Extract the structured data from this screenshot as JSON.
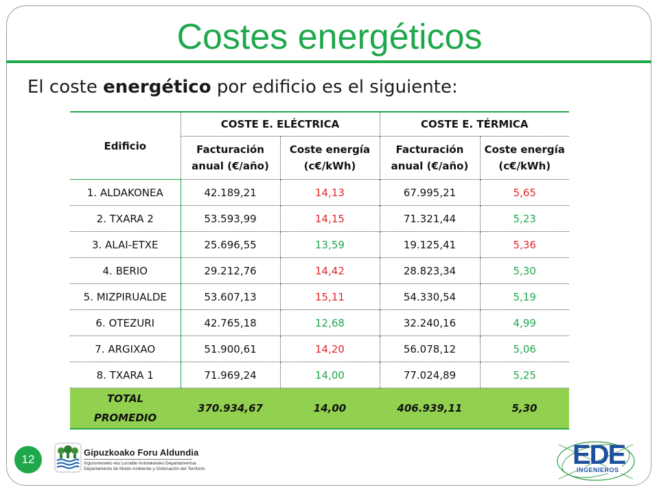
{
  "slide": {
    "title": "Costes energéticos",
    "subtitle_prefix": "El coste ",
    "subtitle_bold": "energético",
    "subtitle_suffix": " por edificio es el siguiente:",
    "page_number": "12"
  },
  "table": {
    "col_building": "Edificio",
    "group_electric": "COSTE E. ELÉCTRICA",
    "group_thermal": "COSTE E. TÉRMICA",
    "sub_billing_line1": "Facturación",
    "sub_billing_line2": "anual (€/año)",
    "sub_cost_line1": "Coste energía",
    "sub_cost_line2": "(c€/kWh)",
    "rows": [
      {
        "name": "1. ALDAKONEA",
        "elec_billing": "42.189,21",
        "elec_cost": "14,13",
        "elec_cost_color": "red",
        "therm_billing": "67.995,21",
        "therm_cost": "5,65",
        "therm_cost_color": "red"
      },
      {
        "name": "2. TXARA 2",
        "elec_billing": "53.593,99",
        "elec_cost": "14,15",
        "elec_cost_color": "red",
        "therm_billing": "71.321,44",
        "therm_cost": "5,23",
        "therm_cost_color": "green"
      },
      {
        "name": "3. ALAI-ETXE",
        "elec_billing": "25.696,55",
        "elec_cost": "13,59",
        "elec_cost_color": "green",
        "therm_billing": "19.125,41",
        "therm_cost": "5,36",
        "therm_cost_color": "red"
      },
      {
        "name": "4. BERIO",
        "elec_billing": "29.212,76",
        "elec_cost": "14,42",
        "elec_cost_color": "red",
        "therm_billing": "28.823,34",
        "therm_cost": "5,30",
        "therm_cost_color": "green"
      },
      {
        "name": "5. MIZPIRUALDE",
        "elec_billing": "53.607,13",
        "elec_cost": "15,11",
        "elec_cost_color": "red",
        "therm_billing": "54.330,54",
        "therm_cost": "5,19",
        "therm_cost_color": "green"
      },
      {
        "name": "6. OTEZURI",
        "elec_billing": "42.765,18",
        "elec_cost": "12,68",
        "elec_cost_color": "green",
        "therm_billing": "32.240,16",
        "therm_cost": "4,99",
        "therm_cost_color": "green"
      },
      {
        "name": "7. ARGIXAO",
        "elec_billing": "51.900,61",
        "elec_cost": "14,20",
        "elec_cost_color": "red",
        "therm_billing": "56.078,12",
        "therm_cost": "5,06",
        "therm_cost_color": "green"
      },
      {
        "name": "8. TXARA 1",
        "elec_billing": "71.969,24",
        "elec_cost": "14,00",
        "elec_cost_color": "green",
        "therm_billing": "77.024,89",
        "therm_cost": "5,25",
        "therm_cost_color": "green"
      }
    ],
    "total": {
      "label_line1": "TOTAL",
      "label_line2": "PROMEDIO",
      "elec_billing": "370.934,67",
      "elec_cost": "14,00",
      "therm_billing": "406.939,11",
      "therm_cost": "5,30"
    }
  },
  "footer": {
    "gipuzkoa_name": "Gipuzkoako Foru Aldundia",
    "gipuzkoa_dept_eu": "Ingurumeneko eta Lurralde Antolaketako Departamentua",
    "gipuzkoa_dept_es": "Departamento de Medio Ambiente y Ordenación del Territorio",
    "ede_logo_text": "EDE",
    "ede_sub_text": "INGENIEROS"
  },
  "colors": {
    "accent_green": "#1ea84b",
    "total_row": "#92d050",
    "value_red": "#e3262a",
    "ede_blue": "#1c4f9c"
  },
  "icons": [
    "gipuzkoa-shield-icon",
    "ede-ingenieros-logo"
  ]
}
